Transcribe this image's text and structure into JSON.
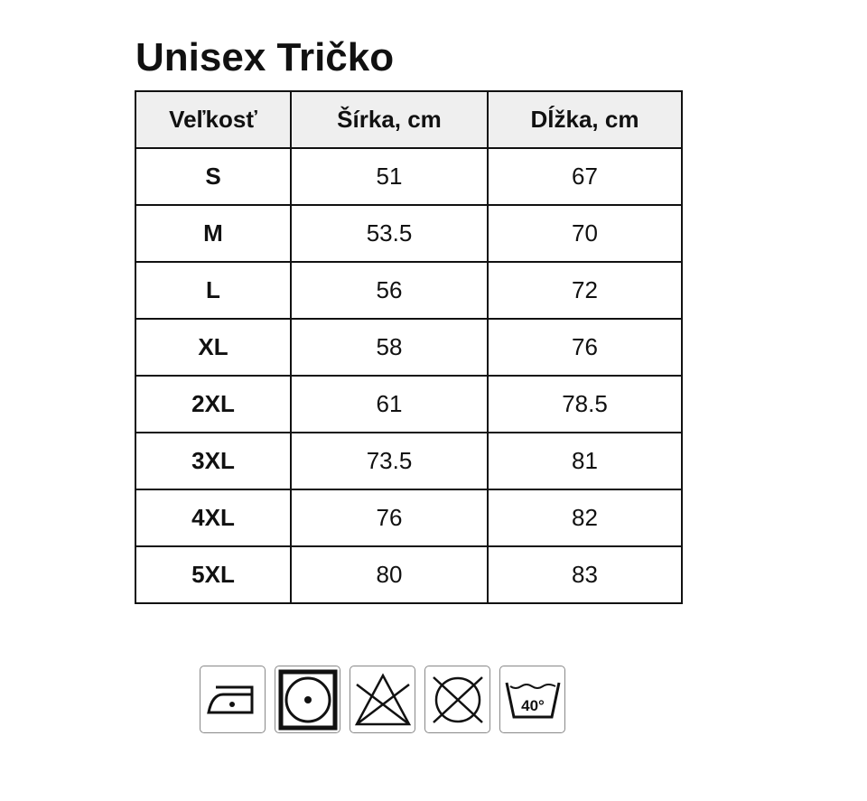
{
  "title": "Unisex Tričko",
  "table": {
    "headers": [
      "Veľkosť",
      "Šírka, cm",
      "Dĺžka, cm"
    ],
    "rows": [
      [
        "S",
        "51",
        "67"
      ],
      [
        "M",
        "53.5",
        "70"
      ],
      [
        "L",
        "56",
        "72"
      ],
      [
        "XL",
        "58",
        "76"
      ],
      [
        "2XL",
        "61",
        "78.5"
      ],
      [
        "3XL",
        "73.5",
        "81"
      ],
      [
        "4XL",
        "76",
        "82"
      ],
      [
        "5XL",
        "80",
        "83"
      ]
    ]
  },
  "care_icons": [
    "iron-low-heat-icon",
    "tumble-dry-low-icon",
    "do-not-bleach-icon",
    "do-not-dry-clean-icon",
    "wash-40-icon"
  ],
  "wash_temp": "40°"
}
